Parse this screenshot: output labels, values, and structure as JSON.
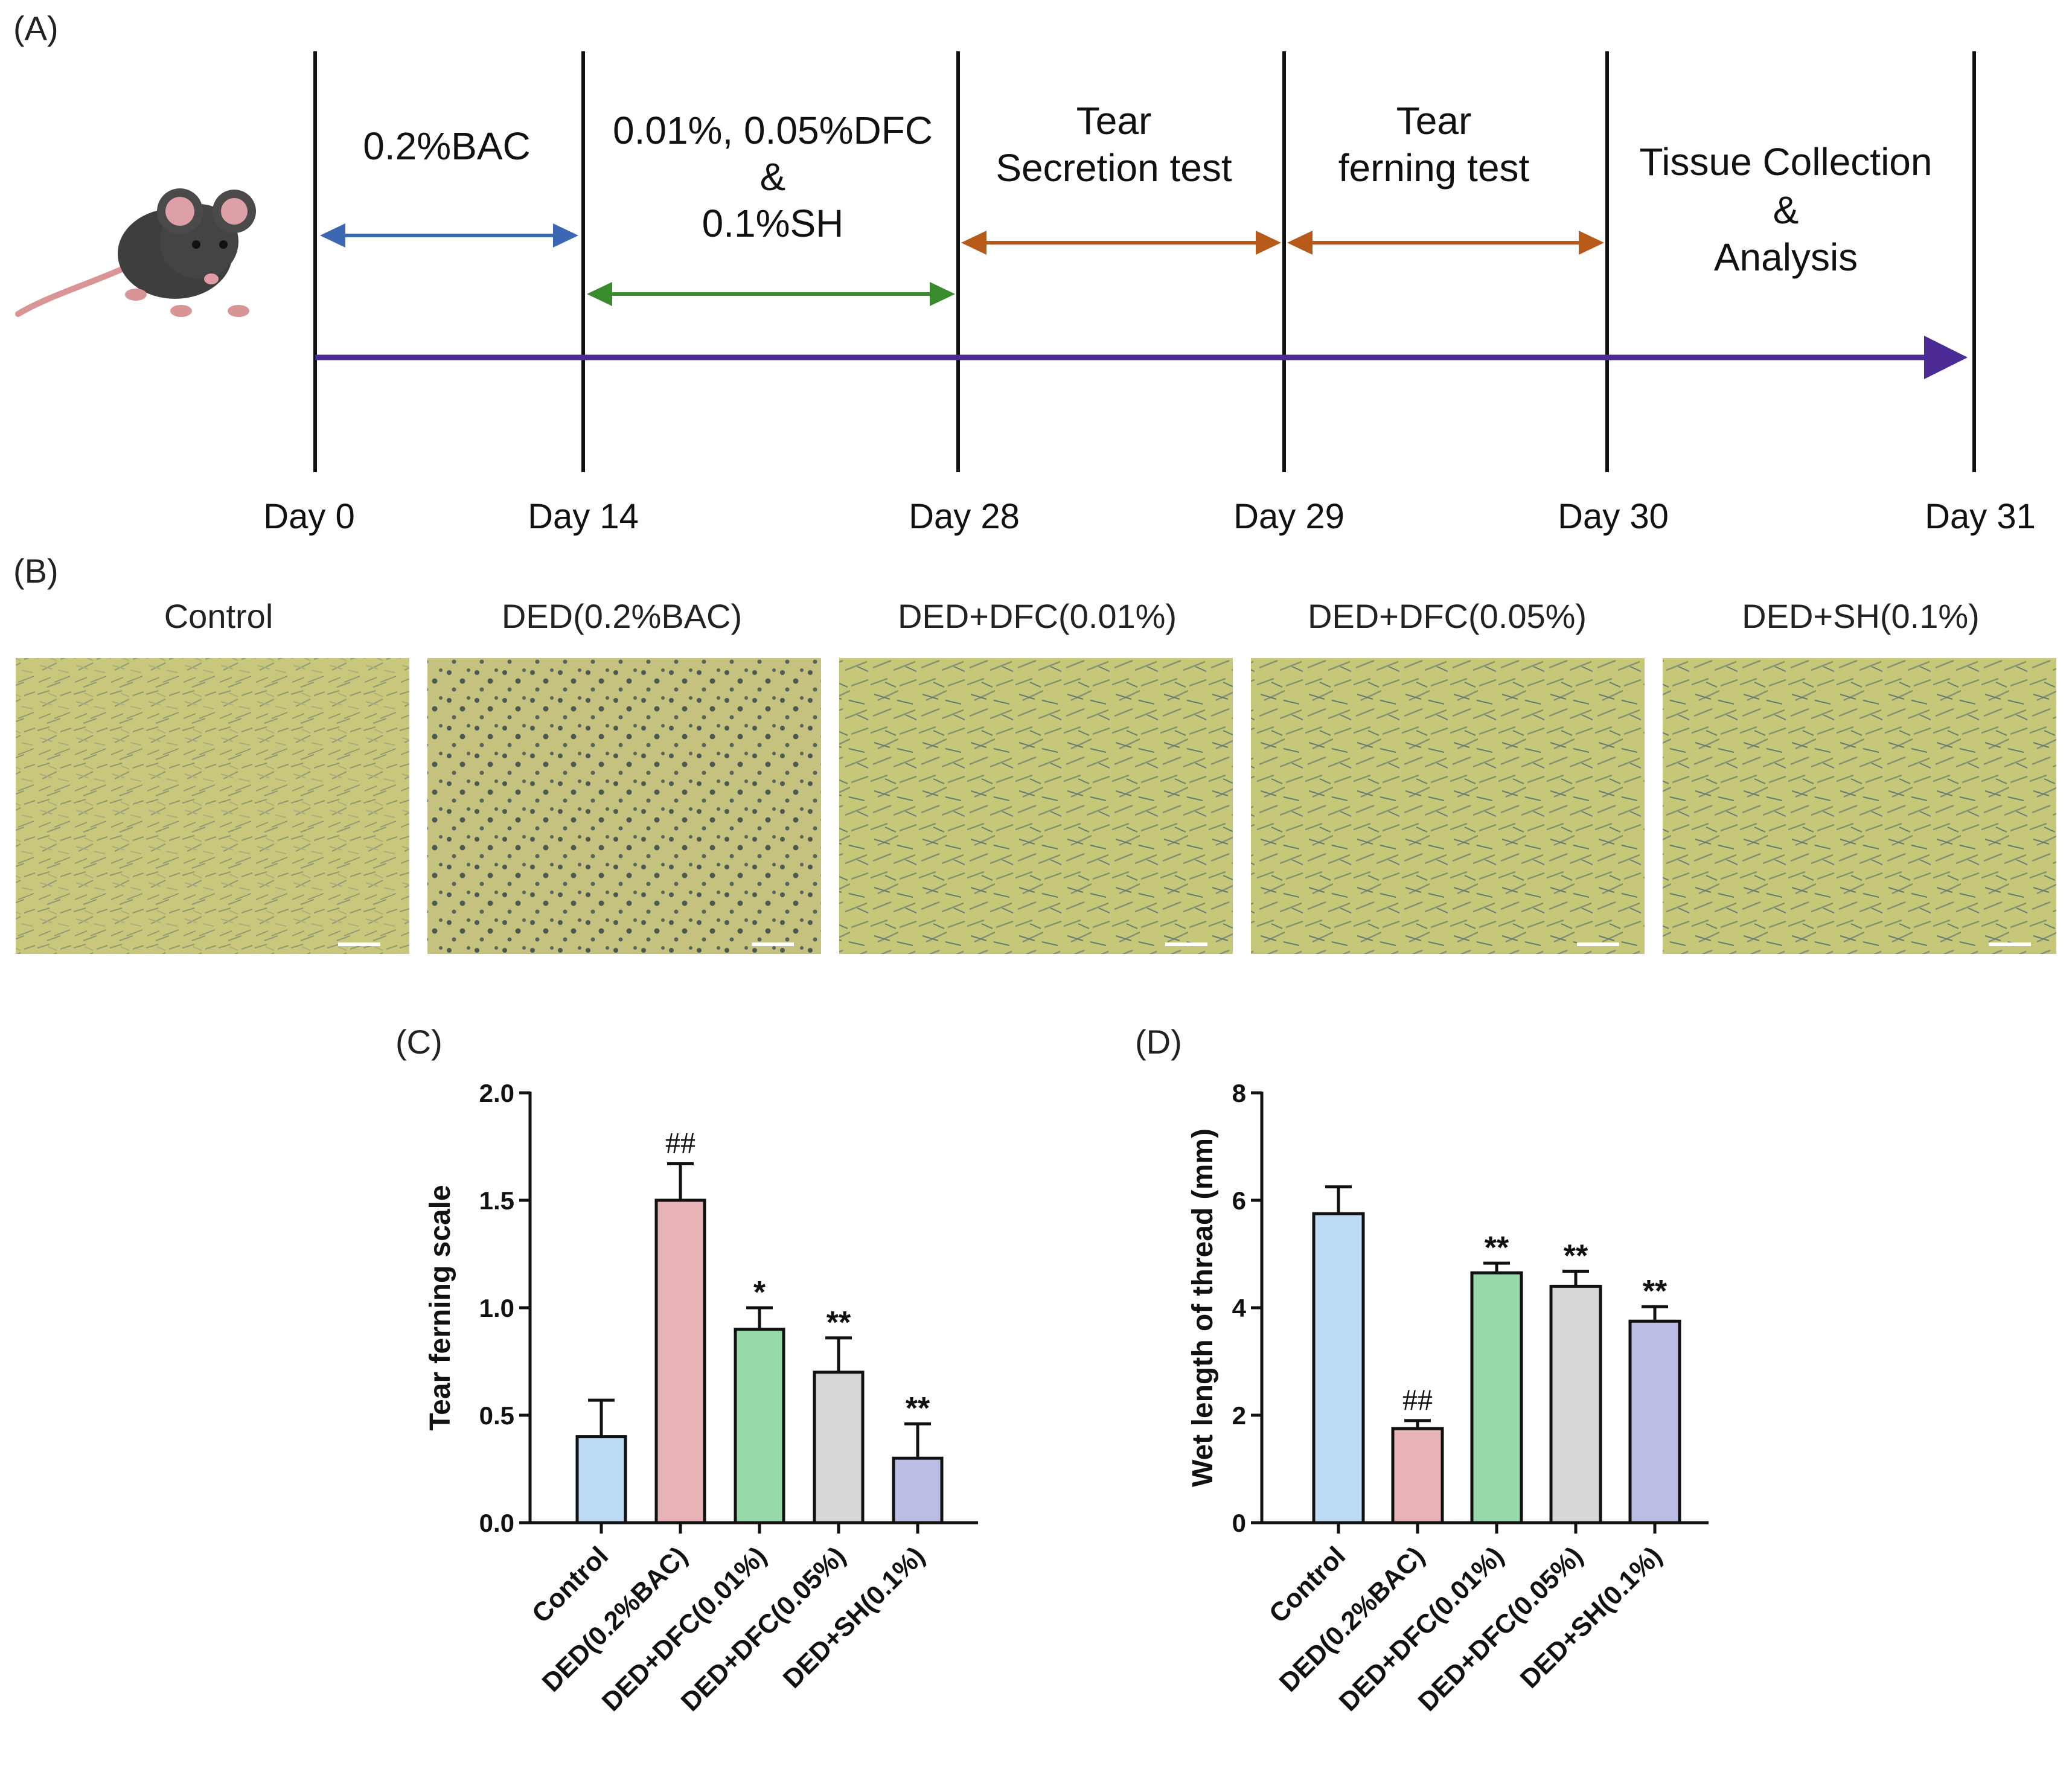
{
  "panels": {
    "a": "(A)",
    "b": "(B)",
    "c": "(C)",
    "d": "(D)"
  },
  "timeline": {
    "days": [
      "Day 0",
      "Day 14",
      "Day 28",
      "Day 29",
      "Day 30",
      "Day 31"
    ],
    "stage1": "0.2%BAC",
    "stage2": [
      "0.01%, 0.05%DFC",
      "&",
      "0.1%SH"
    ],
    "stage3": [
      "Tear",
      "Secretion test"
    ],
    "stage4": [
      "Tear",
      "ferning test"
    ],
    "stage5": [
      "Tissue Collection",
      "&",
      "Analysis"
    ],
    "colors": {
      "main_arrow": "#4b2a96",
      "bac_arrow": "#3b67b3",
      "treatment_arrow": "#3a8a2e",
      "test_arrow": "#b85a1a"
    },
    "icon": "mouse-icon"
  },
  "micrographs": {
    "titles": [
      "Control",
      "DED(0.2%BAC)",
      "DED+DFC(0.01%)",
      "DED+DFC(0.05%)",
      "DED+SH(0.1%)"
    ],
    "background_color": "#c6c57a"
  },
  "chart_data": [
    {
      "type": "bar",
      "categories": [
        "Control",
        "DED(0.2%BAC)",
        "DED+DFC(0.01%)",
        "DED+DFC(0.05%)",
        "DED+SH(0.1%)"
      ],
      "values": [
        0.4,
        1.5,
        0.9,
        0.7,
        0.3
      ],
      "errors": [
        0.17,
        0.17,
        0.1,
        0.16,
        0.16
      ],
      "annotations": [
        "",
        "##",
        "*",
        "**",
        "**"
      ],
      "colors": [
        "#bcdaf4",
        "#e8b3b6",
        "#96d8a8",
        "#d6d8d8",
        "#bcbde5"
      ],
      "title": "",
      "xlabel": "",
      "ylabel": "Tear ferning scale",
      "ylim": [
        0,
        2.0
      ],
      "yticks": [
        "0.0",
        "0.5",
        "1.0",
        "1.5",
        "2.0"
      ]
    },
    {
      "type": "bar",
      "categories": [
        "Control",
        "DED(0.2%BAC)",
        "DED+DFC(0.01%)",
        "DED+DFC(0.05%)",
        "DED+SH(0.1%)"
      ],
      "values": [
        5.75,
        1.75,
        4.65,
        4.4,
        3.75
      ],
      "errors": [
        0.5,
        0.15,
        0.18,
        0.28,
        0.27
      ],
      "annotations": [
        "",
        "##",
        "**",
        "**",
        "**"
      ],
      "colors": [
        "#bcdaf4",
        "#e8b3b6",
        "#96d8a8",
        "#d6d8d8",
        "#bcbde5"
      ],
      "title": "",
      "xlabel": "",
      "ylabel": "Wet length of thread (mm)",
      "ylim": [
        0,
        8
      ],
      "yticks": [
        "0",
        "2",
        "4",
        "6",
        "8"
      ]
    }
  ]
}
